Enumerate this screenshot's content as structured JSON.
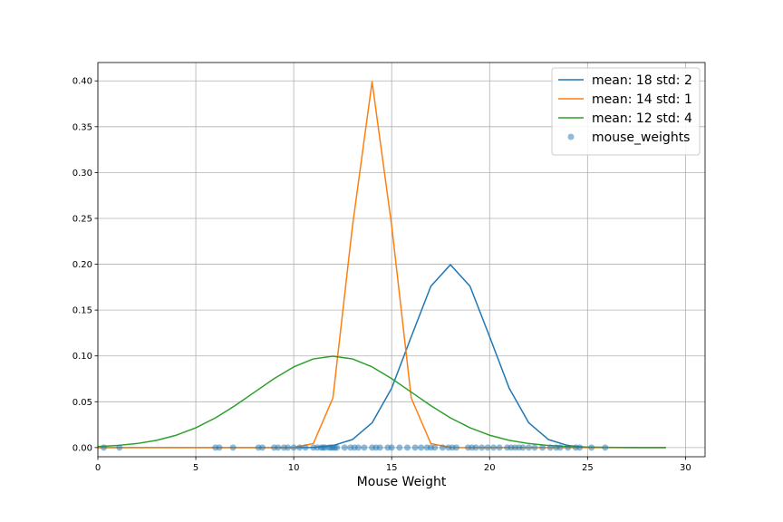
{
  "chart_data": {
    "type": "line",
    "title": "",
    "xlabel": "Mouse Weight",
    "ylabel": "",
    "xlim": [
      0,
      31
    ],
    "ylim": [
      -0.01,
      0.42
    ],
    "xticks": [
      0,
      5,
      10,
      15,
      20,
      25,
      30
    ],
    "yticks": [
      0.0,
      0.05,
      0.1,
      0.15,
      0.2,
      0.25,
      0.3,
      0.35,
      0.4
    ],
    "grid": true,
    "legend_position": "top-right",
    "series": [
      {
        "name": "mean: 18 std: 2",
        "type": "line",
        "color": "#1f77b4",
        "x": [
          0,
          1,
          2,
          3,
          4,
          5,
          6,
          7,
          8,
          9,
          10,
          11,
          12,
          13,
          14,
          15,
          16,
          17,
          18,
          19,
          20,
          21,
          22,
          23,
          24,
          25,
          26,
          27,
          28,
          29
        ],
        "y": [
          0,
          0,
          0,
          0,
          0,
          0,
          0,
          0,
          0,
          0,
          0,
          0.0001,
          0.0022,
          0.0088,
          0.027,
          0.0648,
          0.121,
          0.176,
          0.1995,
          0.176,
          0.121,
          0.0648,
          0.027,
          0.0088,
          0.0022,
          0.0004,
          0.0001,
          0,
          0,
          0
        ]
      },
      {
        "name": "mean: 14 std: 1",
        "type": "line",
        "color": "#ff7f0e",
        "x": [
          0,
          1,
          2,
          3,
          4,
          5,
          6,
          7,
          8,
          9,
          10,
          11,
          12,
          13,
          14,
          15,
          16,
          17,
          18,
          19,
          20,
          21,
          22,
          23,
          24,
          25,
          26,
          27,
          28,
          29
        ],
        "y": [
          0,
          0,
          0,
          0,
          0,
          0,
          0,
          0,
          0,
          0,
          0.0001,
          0.0044,
          0.054,
          0.242,
          0.399,
          0.242,
          0.054,
          0.0044,
          0.0001,
          0,
          0,
          0,
          0,
          0,
          0,
          0,
          0,
          0,
          0,
          0
        ]
      },
      {
        "name": "mean: 12 std: 4",
        "type": "line",
        "color": "#2ca02c",
        "x": [
          0,
          1,
          2,
          3,
          4,
          5,
          6,
          7,
          8,
          9,
          10,
          11,
          12,
          13,
          14,
          15,
          16,
          17,
          18,
          19,
          20,
          21,
          22,
          23,
          24,
          25,
          26,
          27,
          28,
          29
        ],
        "y": [
          0.0011,
          0.0023,
          0.0044,
          0.0079,
          0.0135,
          0.0216,
          0.0324,
          0.0457,
          0.0605,
          0.0753,
          0.088,
          0.0967,
          0.0997,
          0.0967,
          0.088,
          0.0753,
          0.0605,
          0.0457,
          0.0324,
          0.0216,
          0.0135,
          0.0079,
          0.0044,
          0.0023,
          0.0011,
          0.0005,
          0.0002,
          0.0001,
          0,
          0
        ]
      },
      {
        "name": "mouse_weights",
        "type": "scatter",
        "color": "#1f77b4",
        "x": [
          0.3,
          1.1,
          6.0,
          6.2,
          6.9,
          8.2,
          8.4,
          9.0,
          9.2,
          9.5,
          9.7,
          10.0,
          10.3,
          10.6,
          11.0,
          11.2,
          11.4,
          11.5,
          11.6,
          11.8,
          11.9,
          12.0,
          12.1,
          12.2,
          12.6,
          12.9,
          13.1,
          13.3,
          13.6,
          14.0,
          14.2,
          14.4,
          14.8,
          15.0,
          15.4,
          15.8,
          16.2,
          16.5,
          16.8,
          17.0,
          17.2,
          17.6,
          17.9,
          18.1,
          18.3,
          18.9,
          19.1,
          19.3,
          19.6,
          19.9,
          20.2,
          20.5,
          20.9,
          21.1,
          21.3,
          21.5,
          21.7,
          22.0,
          22.3,
          22.7,
          23.1,
          23.4,
          23.6,
          24.0,
          24.4,
          24.6,
          25.2,
          25.9
        ],
        "y": [
          0,
          0,
          0,
          0,
          0,
          0,
          0,
          0,
          0,
          0,
          0,
          0,
          0,
          0,
          0,
          0,
          0,
          0,
          0,
          0,
          0,
          0,
          0,
          0,
          0,
          0,
          0,
          0,
          0,
          0,
          0,
          0,
          0,
          0,
          0,
          0,
          0,
          0,
          0,
          0,
          0,
          0,
          0,
          0,
          0,
          0,
          0,
          0,
          0,
          0,
          0,
          0,
          0,
          0,
          0,
          0,
          0,
          0,
          0,
          0,
          0,
          0,
          0,
          0,
          0,
          0,
          0,
          0
        ]
      }
    ]
  }
}
